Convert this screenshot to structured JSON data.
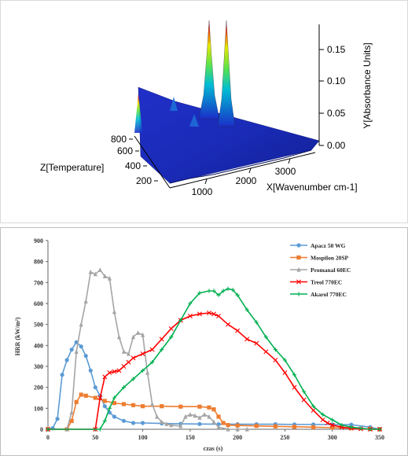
{
  "chart_data": [
    {
      "type": "surface3d",
      "xlabel": "X[Wavenumber cm-1]",
      "ylabel": "Y[Absorbance Units]",
      "zlabel": "Z[Temperature]",
      "x_ticks": [
        "1000",
        "2000",
        "3000"
      ],
      "y_ticks": [
        "0.00",
        "0.05",
        "0.10",
        "0.15"
      ],
      "z_ticks": [
        "200",
        "400",
        "600",
        "800"
      ],
      "ylim": [
        0,
        0.18
      ],
      "peaks": [
        {
          "wavenumber": 2360,
          "temperature": 600,
          "absorbance": 0.18
        },
        {
          "wavenumber": 2330,
          "temperature": 650,
          "absorbance": 0.175
        },
        {
          "wavenumber": 3700,
          "temperature": 300,
          "absorbance": 0.03
        }
      ]
    },
    {
      "type": "line",
      "xlabel": "czas (s)",
      "ylabel": "HRR (kW/m²)",
      "xlim": [
        0,
        350
      ],
      "ylim": [
        0,
        900
      ],
      "x_ticks": [
        0,
        50,
        100,
        150,
        200,
        250,
        300,
        350
      ],
      "y_ticks": [
        0,
        100,
        200,
        300,
        400,
        500,
        600,
        700,
        800,
        900
      ],
      "grid": false,
      "legend": "top-right",
      "series": [
        {
          "name": "Apacz 50 WG",
          "color": "#5b9bd5",
          "marker": "circle",
          "x": [
            0,
            5,
            10,
            15,
            20,
            25,
            30,
            35,
            40,
            45,
            50,
            55,
            60,
            65,
            70,
            80,
            90,
            100,
            120,
            140,
            160,
            180,
            200,
            220,
            240,
            260,
            280,
            300,
            320,
            340,
            350
          ],
          "y": [
            0,
            5,
            50,
            260,
            330,
            380,
            415,
            395,
            350,
            280,
            200,
            160,
            110,
            80,
            60,
            40,
            30,
            30,
            28,
            26,
            25,
            24,
            24,
            24,
            24,
            23,
            23,
            23,
            22,
            10,
            0
          ]
        },
        {
          "name": "Mospilon 20SP",
          "color": "#ed7d31",
          "marker": "square",
          "x": [
            0,
            20,
            25,
            30,
            35,
            40,
            50,
            60,
            70,
            80,
            90,
            100,
            120,
            140,
            160,
            170,
            175,
            180,
            185,
            190,
            200,
            220,
            240,
            260,
            280,
            300,
            320,
            340,
            350
          ],
          "y": [
            0,
            0,
            40,
            130,
            165,
            160,
            150,
            135,
            125,
            120,
            115,
            110,
            110,
            108,
            108,
            104,
            95,
            60,
            30,
            20,
            18,
            16,
            14,
            12,
            10,
            8,
            5,
            2,
            0
          ]
        },
        {
          "name": "Promanal 60EC",
          "color": "#a5a5a5",
          "marker": "triangle",
          "x": [
            0,
            20,
            25,
            30,
            35,
            40,
            45,
            50,
            55,
            60,
            65,
            70,
            75,
            80,
            85,
            90,
            95,
            100,
            105,
            110,
            115,
            120,
            125,
            130,
            140,
            145,
            150,
            155,
            160,
            165,
            170,
            175,
            180,
            190,
            200,
            210
          ],
          "y": [
            0,
            0,
            80,
            370,
            500,
            610,
            750,
            740,
            760,
            730,
            720,
            560,
            440,
            370,
            360,
            440,
            460,
            450,
            270,
            120,
            60,
            35,
            25,
            20,
            15,
            60,
            70,
            65,
            55,
            70,
            60,
            35,
            10,
            0,
            0,
            0
          ]
        },
        {
          "name": "Treol 770EC",
          "color": "#ff0000",
          "marker": "x",
          "x": [
            0,
            50,
            55,
            60,
            65,
            70,
            75,
            80,
            85,
            90,
            100,
            110,
            120,
            130,
            140,
            150,
            160,
            170,
            175,
            180,
            190,
            200,
            210,
            220,
            230,
            240,
            250,
            260,
            270,
            280,
            290,
            295,
            300,
            310,
            320,
            330,
            340,
            350
          ],
          "y": [
            0,
            0,
            150,
            250,
            270,
            275,
            280,
            300,
            320,
            340,
            360,
            380,
            430,
            480,
            520,
            540,
            550,
            555,
            550,
            540,
            500,
            470,
            430,
            410,
            370,
            330,
            270,
            200,
            140,
            90,
            45,
            30,
            20,
            10,
            5,
            2,
            0,
            0
          ]
        },
        {
          "name": "Akarol 770EC",
          "color": "#00b050",
          "marker": "plus",
          "x": [
            0,
            55,
            60,
            65,
            70,
            80,
            90,
            100,
            110,
            120,
            130,
            140,
            150,
            160,
            170,
            175,
            180,
            185,
            190,
            195,
            200,
            210,
            220,
            230,
            240,
            250,
            260,
            270,
            280,
            290,
            300,
            310,
            320,
            330,
            340,
            350
          ],
          "y": [
            0,
            0,
            40,
            100,
            150,
            200,
            240,
            280,
            320,
            380,
            440,
            520,
            600,
            650,
            660,
            660,
            640,
            660,
            670,
            665,
            640,
            570,
            510,
            440,
            380,
            330,
            260,
            180,
            110,
            70,
            45,
            20,
            10,
            5,
            0,
            0
          ]
        }
      ]
    }
  ]
}
